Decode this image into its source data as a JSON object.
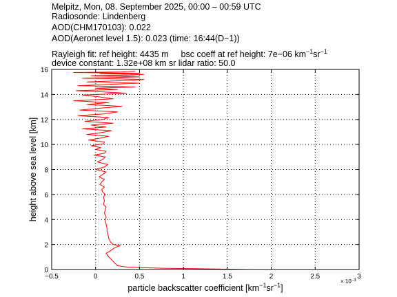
{
  "header": {
    "line1": "Melpitz, Mon, 08. September 2025, 00:00 – 00:59 UTC",
    "line2": "Radiosonde: Lindenberg",
    "line3": "AOD(CHM170103): 0.022",
    "line4": "AOD(Aeronet level 1.5): 0.023   (time: 16:44(D−1))",
    "line5a": "Rayleigh fit:     ref height: 4435 m",
    "line5b_pre": "bsc coeff at ref height: 7e−06 km",
    "line5b_sup1": "−1",
    "line5b_mid": "sr",
    "line5b_sup2": "−1",
    "line6": "device constant: 1.32e+08 km sr     lidar ratio: 50.0"
  },
  "chart_data": {
    "type": "line",
    "title": "",
    "xlabel_pre": "particle backscatter coefficient [km",
    "xlabel_sup1": "−1",
    "xlabel_mid": "sr",
    "xlabel_sup2": "−1",
    "xlabel_post": "]",
    "ylabel": "height above sea level [km]",
    "x_multiplier_label": "× 10",
    "x_multiplier_exp": "−3",
    "xlim": [
      -0.5,
      3
    ],
    "ylim": [
      0,
      16
    ],
    "xticks": [
      -0.5,
      0,
      0.5,
      1,
      1.5,
      2,
      2.5,
      3
    ],
    "xtick_labels": [
      "−0.5",
      "0",
      "0.5",
      "1",
      "1.5",
      "2",
      "2.5",
      "3"
    ],
    "yticks": [
      0,
      2,
      4,
      6,
      8,
      10,
      12,
      14,
      16
    ],
    "ytick_labels": [
      "0",
      "2",
      "4",
      "6",
      "8",
      "10",
      "12",
      "14",
      "16"
    ],
    "grid": true,
    "color": "#ff0000",
    "series": [
      {
        "name": "",
        "x": [
          1.75,
          1.2,
          0.8,
          0.5,
          0.35,
          0.25,
          0.22,
          0.18,
          0.15,
          0.12,
          0.17,
          0.22,
          0.28,
          0.2,
          0.17,
          0.15,
          0.14,
          0.13,
          0.13,
          0.12,
          0.11,
          0.12,
          0.1,
          0.11,
          0.12,
          0.09,
          0.1,
          0.09,
          0.11,
          0.08,
          0.07,
          0.1,
          0.05,
          0.07,
          0.1,
          0.04,
          0.08,
          0.12,
          0.0,
          0.1,
          0.14,
          0.02,
          0.08,
          0.11,
          -0.02,
          0.1,
          0.12,
          0.0,
          0.06,
          -0.05,
          0.09,
          0.1,
          -0.08,
          0.05,
          0.15,
          -0.1,
          0.07,
          0.18,
          -0.15,
          0.12,
          -0.05,
          0.2,
          -0.12,
          0.08,
          0.15,
          -0.2,
          0.1,
          0.25,
          -0.18,
          0.05,
          0.3,
          -0.1,
          0.15,
          -0.25,
          0.2,
          0.05,
          -0.15,
          0.35,
          0.1,
          -0.22,
          0.25,
          0.0,
          0.45,
          -0.2,
          0.15,
          0.5,
          -0.1,
          0.3,
          0.55,
          -0.15,
          0.2,
          0.5,
          -0.05,
          0.4,
          0.55,
          0.05,
          0.5,
          -0.25,
          0.3,
          0.45
        ],
        "y": [
          0.0,
          0.06,
          0.1,
          0.15,
          0.2,
          0.3,
          0.5,
          0.8,
          1.0,
          1.3,
          1.5,
          1.75,
          1.9,
          2.0,
          2.2,
          2.5,
          2.8,
          3.0,
          3.3,
          3.6,
          3.9,
          4.2,
          4.5,
          4.8,
          5.0,
          5.2,
          5.5,
          5.8,
          6.0,
          6.2,
          6.4,
          6.6,
          6.8,
          7.0,
          7.2,
          7.4,
          7.6,
          7.8,
          8.0,
          8.2,
          8.4,
          8.6,
          8.8,
          9.0,
          9.15,
          9.3,
          9.45,
          9.6,
          9.75,
          9.9,
          10.05,
          10.2,
          10.35,
          10.5,
          10.65,
          10.8,
          10.95,
          11.1,
          11.25,
          11.4,
          11.55,
          11.7,
          11.85,
          12.0,
          12.15,
          12.3,
          12.45,
          12.6,
          12.75,
          12.9,
          13.05,
          13.2,
          13.35,
          13.5,
          13.65,
          13.8,
          13.95,
          14.1,
          14.2,
          14.3,
          14.4,
          14.5,
          14.6,
          14.7,
          14.8,
          14.9,
          15.0,
          15.1,
          15.2,
          15.3,
          15.35,
          15.4,
          15.5,
          15.55,
          15.6,
          15.65,
          15.7,
          15.75,
          15.8,
          15.85
        ]
      }
    ]
  }
}
